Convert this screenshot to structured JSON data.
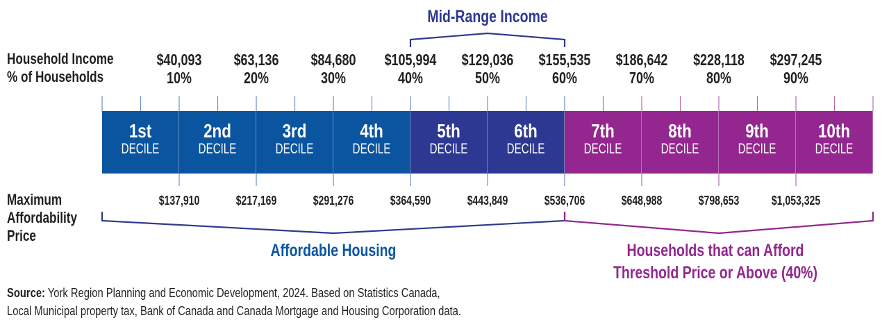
{
  "row_labels": {
    "income": "Household Income",
    "percent": "% of Households",
    "price": [
      "Maximum",
      "Affordability",
      "Price"
    ]
  },
  "mid_range_label": "Mid-Range Income",
  "incomes": [
    "$40,093",
    "$63,136",
    "$84,680",
    "$105,994",
    "$129,036",
    "$155,535",
    "$186,642",
    "$228,118",
    "$297,245"
  ],
  "percents": [
    "10%",
    "20%",
    "30%",
    "40%",
    "50%",
    "60%",
    "70%",
    "80%",
    "90%"
  ],
  "deciles": [
    {
      "ordinal": "1st",
      "word": "DECILE",
      "group": "affordable"
    },
    {
      "ordinal": "2nd",
      "word": "DECILE",
      "group": "affordable"
    },
    {
      "ordinal": "3rd",
      "word": "DECILE",
      "group": "affordable"
    },
    {
      "ordinal": "4th",
      "word": "DECILE",
      "group": "affordable"
    },
    {
      "ordinal": "5th",
      "word": "DECILE",
      "group": "mid"
    },
    {
      "ordinal": "6th",
      "word": "DECILE",
      "group": "mid"
    },
    {
      "ordinal": "7th",
      "word": "DECILE",
      "group": "above"
    },
    {
      "ordinal": "8th",
      "word": "DECILE",
      "group": "above"
    },
    {
      "ordinal": "9th",
      "word": "DECILE",
      "group": "above"
    },
    {
      "ordinal": "10th",
      "word": "DECILE",
      "group": "above"
    }
  ],
  "prices": [
    "$137,910",
    "$217,169",
    "$291,276",
    "$364,590",
    "$443,849",
    "$536,706",
    "$648,988",
    "$798,653",
    "$1,053,325"
  ],
  "affordable_label": "Affordable Housing",
  "above_label": [
    "Households that can Afford",
    "Threshold Price or Above (40%)"
  ],
  "source": {
    "prefix": "Source:",
    "line1": " York Region Planning and Economic Development, 2024. Based on Statistics Canada,",
    "line2": "Local Municipal property tax, Bank of Canada and Canada Mortgage and Housing Corporation data."
  },
  "colors": {
    "affordable": "#0b55a0",
    "mid": "#2c3892",
    "above": "#93278f",
    "bracket_blue": "#2e3a8c",
    "text_blue": "#0b55a0"
  }
}
